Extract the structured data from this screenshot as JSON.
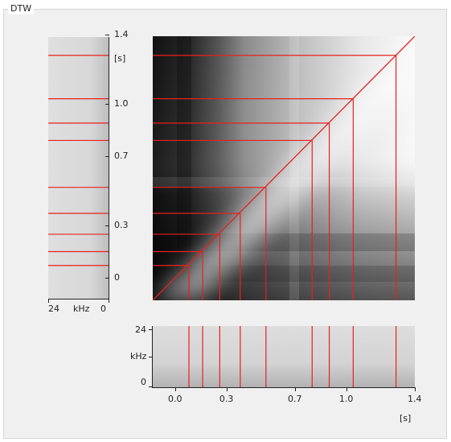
{
  "group": {
    "title": "DTW"
  },
  "left_axis": {
    "ticks": [
      "1.4",
      "1.0",
      "0.7",
      "0.3",
      "0"
    ],
    "tick_values": [
      1.4,
      1.0,
      0.7,
      0.3,
      0.0
    ],
    "unit": "[s]",
    "freq_ticks": [
      "24",
      "kHz",
      "0"
    ]
  },
  "bottom_axis": {
    "ticks": [
      "0.0",
      "0.3",
      "0.7",
      "1.0",
      "1.4"
    ],
    "tick_values": [
      0.0,
      0.3,
      0.7,
      1.0,
      1.4
    ],
    "unit": "[s]",
    "freq_ticks": [
      "24",
      "kHz",
      "0"
    ]
  },
  "warping_path": {
    "color": "#e8201e",
    "x": [
      0.08,
      0.16,
      0.26,
      0.38,
      0.53,
      0.8,
      0.9,
      1.04,
      1.29
    ],
    "y": [
      0.08,
      0.16,
      0.26,
      0.38,
      0.53,
      0.8,
      0.9,
      1.04,
      1.29
    ]
  }
}
